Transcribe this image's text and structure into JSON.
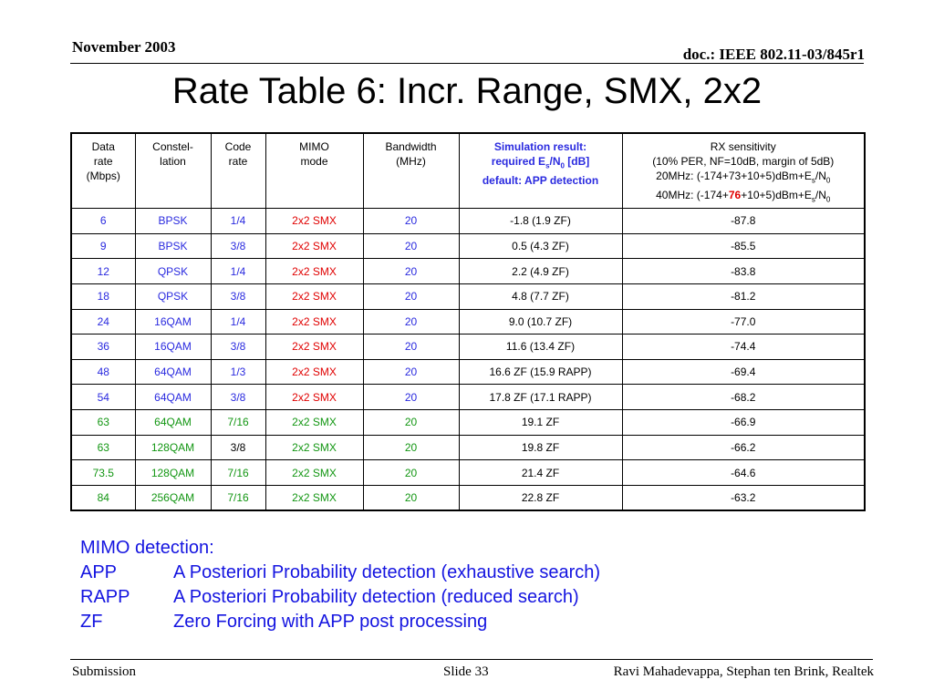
{
  "header": {
    "date": "November 2003",
    "doc_id": "doc.: IEEE 802.11-03/845r1"
  },
  "slide_title": "Rate Table 6: Incr. Range, SMX, 2x2",
  "table": {
    "headers": {
      "data_rate": [
        "Data",
        "rate",
        "(Mbps)"
      ],
      "constellation": [
        "Constel-",
        "lation"
      ],
      "code_rate": [
        "Code",
        "rate"
      ],
      "mimo_mode": [
        "MIMO",
        "mode"
      ],
      "bandwidth": [
        "Bandwidth",
        "(MHz)"
      ],
      "simulation": {
        "line1": "Simulation result:",
        "line2_pre": "required E",
        "line2_sub1": "s",
        "line2_mid": "/N",
        "line2_sub2": "0",
        "line2_post": " [dB]",
        "line3": "default: APP detection"
      },
      "rx_sensitivity": {
        "line1": "RX sensitivity",
        "line2": "(10% PER, NF=10dB, margin of 5dB)",
        "line3_pre": "20MHz: (-174+73+10+5)dBm+E",
        "line3_sub1": "s",
        "line3_mid": "/N",
        "line3_sub2": "0",
        "line4_pre": "40MHz: (-174+",
        "line4_highlight": "76",
        "line4_mid": "+10+5)dBm+E",
        "line4_sub1": "s",
        "line4_mid2": "/N",
        "line4_sub2": "0"
      }
    },
    "rows": [
      {
        "rate": "6",
        "constellation": "BPSK",
        "code": "1/4",
        "mode": "2x2 SMX",
        "bw": "20",
        "sim": "-1.8 (1.9 ZF)",
        "rx": "-87.8"
      },
      {
        "rate": "9",
        "constellation": "BPSK",
        "code": "3/8",
        "mode": "2x2 SMX",
        "bw": "20",
        "sim": "0.5 (4.3 ZF)",
        "rx": "-85.5"
      },
      {
        "rate": "12",
        "constellation": "QPSK",
        "code": "1/4",
        "mode": "2x2 SMX",
        "bw": "20",
        "sim": "2.2 (4.9 ZF)",
        "rx": "-83.8"
      },
      {
        "rate": "18",
        "constellation": "QPSK",
        "code": "3/8",
        "mode": "2x2 SMX",
        "bw": "20",
        "sim": "4.8 (7.7 ZF)",
        "rx": "-81.2"
      },
      {
        "rate": "24",
        "constellation": "16QAM",
        "code": "1/4",
        "mode": "2x2 SMX",
        "bw": "20",
        "sim": "9.0 (10.7 ZF)",
        "rx": "-77.0"
      },
      {
        "rate": "36",
        "constellation": "16QAM",
        "code": "3/8",
        "mode": "2x2 SMX",
        "bw": "20",
        "sim": "11.6 (13.4 ZF)",
        "rx": "-74.4"
      },
      {
        "rate": "48",
        "constellation": "64QAM",
        "code": "1/3",
        "mode": "2x2 SMX",
        "bw": "20",
        "sim": "16.6 ZF (15.9 RAPP)",
        "rx": "-69.4"
      },
      {
        "rate": "54",
        "constellation": "64QAM",
        "code": "3/8",
        "mode": "2x2 SMX",
        "bw": "20",
        "sim": "17.8 ZF (17.1 RAPP)",
        "rx": "-68.2"
      },
      {
        "rate": "63",
        "constellation": "64QAM",
        "code": "7/16",
        "mode": "2x2 SMX",
        "bw": "20",
        "sim": "19.1 ZF",
        "rx": "-66.9"
      },
      {
        "rate": "63",
        "constellation": "128QAM",
        "code": "3/8",
        "mode": "2x2 SMX",
        "bw": "20",
        "sim": "19.8 ZF",
        "rx": "-66.2"
      },
      {
        "rate": "73.5",
        "constellation": "128QAM",
        "code": "7/16",
        "mode": "2x2 SMX",
        "bw": "20",
        "sim": "21.4 ZF",
        "rx": "-64.6"
      },
      {
        "rate": "84",
        "constellation": "256QAM",
        "code": "7/16",
        "mode": "2x2 SMX",
        "bw": "20",
        "sim": "22.8 ZF",
        "rx": "-63.2"
      }
    ],
    "row_colors": {
      "rate": [
        "#2a2adf",
        "#2a2adf",
        "#2a2adf",
        "#2a2adf",
        "#2a2adf",
        "#2a2adf",
        "#2a2adf",
        "#2a2adf",
        "#129612",
        "#129612",
        "#129612",
        "#129612"
      ],
      "constellation": [
        "#2a2adf",
        "#2a2adf",
        "#2a2adf",
        "#2a2adf",
        "#2a2adf",
        "#2a2adf",
        "#2a2adf",
        "#2a2adf",
        "#129612",
        "#129612",
        "#129612",
        "#129612"
      ],
      "code": [
        "#2a2adf",
        "#2a2adf",
        "#2a2adf",
        "#2a2adf",
        "#2a2adf",
        "#2a2adf",
        "#2a2adf",
        "#2a2adf",
        "#129612",
        "#000000",
        "#129612",
        "#129612"
      ],
      "mode": [
        "#e00000",
        "#e00000",
        "#e00000",
        "#e00000",
        "#e00000",
        "#e00000",
        "#e00000",
        "#e00000",
        "#129612",
        "#129612",
        "#129612",
        "#129612"
      ],
      "bw": [
        "#2a2adf",
        "#2a2adf",
        "#2a2adf",
        "#2a2adf",
        "#2a2adf",
        "#2a2adf",
        "#2a2adf",
        "#2a2adf",
        "#129612",
        "#129612",
        "#129612",
        "#129612"
      ]
    }
  },
  "notes": {
    "heading": "MIMO detection:",
    "items": [
      {
        "abbr": "APP",
        "text": "A Posteriori Probability detection (exhaustive search)"
      },
      {
        "abbr": "RAPP",
        "text": "A Posteriori Probability detection (reduced search)"
      },
      {
        "abbr": "ZF",
        "text": "Zero Forcing with APP post processing"
      }
    ]
  },
  "footer": {
    "left": "Submission",
    "center": "Slide 33",
    "right": "Ravi Mahadevappa, Stephan ten Brink, Realtek"
  }
}
